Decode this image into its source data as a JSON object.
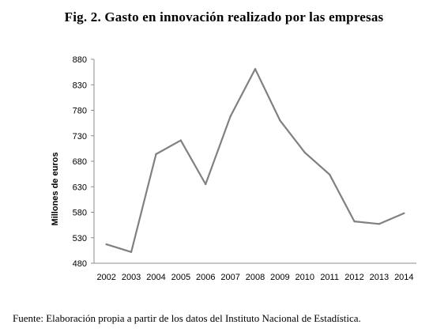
{
  "figure": {
    "title": "Fig. 2. Gasto en innovación realizado por las empresas",
    "source": "Fuente: Elaboración propia a partir de los datos del Instituto Nacional de Estadística."
  },
  "chart_data": {
    "type": "line",
    "title": "Fig. 2. Gasto en innovación realizado por las empresas",
    "xlabel": "",
    "ylabel": "Millones de euros",
    "x": [
      "2002",
      "2003",
      "2004",
      "2005",
      "2006",
      "2007",
      "2008",
      "2009",
      "2010",
      "2011",
      "2012",
      "2013",
      "2014"
    ],
    "series": [
      {
        "values": [
          517,
          502,
          694,
          721,
          635,
          768,
          861,
          760,
          697,
          654,
          562,
          557,
          578
        ],
        "color": "#808080"
      }
    ],
    "ylim": [
      480,
      880
    ],
    "yticks": [
      "880",
      "830",
      "780",
      "730",
      "680",
      "630",
      "580",
      "530",
      "480"
    ],
    "grid": false,
    "legend": "none"
  }
}
